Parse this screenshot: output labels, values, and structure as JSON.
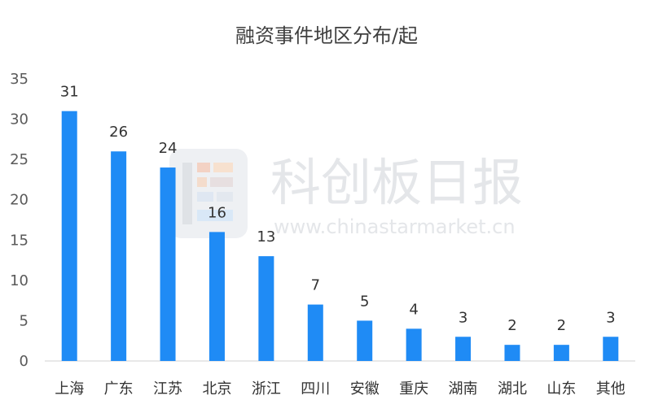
{
  "chart_data": {
    "type": "bar",
    "title": "融资事件地区分布/起",
    "categories": [
      "上海",
      "广东",
      "江苏",
      "北京",
      "浙江",
      "四川",
      "安徽",
      "重庆",
      "湖南",
      "湖北",
      "山东",
      "其他"
    ],
    "values": [
      31,
      26,
      24,
      16,
      13,
      7,
      5,
      4,
      3,
      2,
      2,
      3
    ],
    "yticks": [
      0,
      5,
      10,
      15,
      20,
      25,
      30,
      35
    ],
    "ylim": [
      0,
      35
    ],
    "xlabel": "",
    "ylabel": "",
    "grid": false,
    "legend": "none",
    "bar_color": "#1f8bf5",
    "data_labels": true
  },
  "watermark": {
    "name": "科创板日报",
    "url": "www.chinastarmarket.cn",
    "logo": "cailian-logo-icon"
  }
}
